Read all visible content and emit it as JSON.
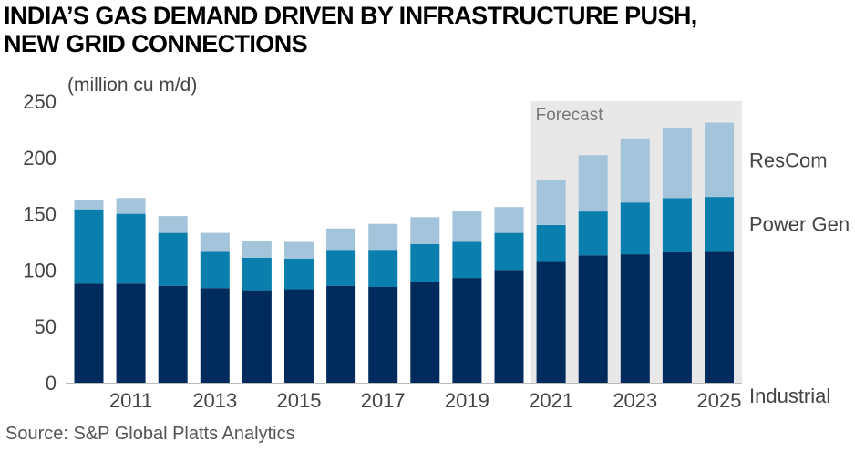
{
  "title": {
    "line1": "INDIA’S GAS DEMAND DRIVEN BY INFRASTRUCTURE PUSH,",
    "line2": "NEW GRID CONNECTIONS"
  },
  "unit_label": "(million cu m/d)",
  "source": "Source: S&P Global Platts Analytics",
  "forecast_label": "Forecast",
  "colors": {
    "industrial": "#002b5c",
    "power_gen": "#0a7fae",
    "rescom": "#a4c4dc",
    "forecast_bg": "#e8e8e8",
    "axis_text": "#444444"
  },
  "chart_data": {
    "type": "bar",
    "stacked": true,
    "x": [
      2010,
      2011,
      2012,
      2013,
      2014,
      2015,
      2016,
      2017,
      2018,
      2019,
      2020,
      2021,
      2022,
      2023,
      2024,
      2025
    ],
    "x_tick_labels": [
      "2011",
      "2013",
      "2015",
      "2017",
      "2019",
      "2021",
      "2023",
      "2025"
    ],
    "x_tick_values": [
      2011,
      2013,
      2015,
      2017,
      2019,
      2021,
      2023,
      2025
    ],
    "y_tick_labels": [
      "0",
      "50",
      "100",
      "150",
      "200",
      "250"
    ],
    "ylim": [
      0,
      250
    ],
    "forecast_start": 2021,
    "series": [
      {
        "name": "Industrial",
        "color": "#002b5c",
        "values": [
          88,
          88,
          86,
          84,
          82,
          83,
          86,
          85,
          89,
          93,
          100,
          108,
          113,
          114,
          116,
          117
        ]
      },
      {
        "name": "Power Gen",
        "color": "#0a7fae",
        "values": [
          66,
          62,
          47,
          33,
          29,
          27,
          32,
          33,
          34,
          32,
          33,
          32,
          39,
          46,
          48,
          48
        ]
      },
      {
        "name": "ResCom",
        "color": "#a4c4dc",
        "values": [
          8,
          14,
          15,
          16,
          15,
          15,
          19,
          23,
          24,
          27,
          23,
          40,
          50,
          57,
          62,
          66
        ]
      }
    ],
    "grid": false,
    "legend": "right, inline labels"
  }
}
